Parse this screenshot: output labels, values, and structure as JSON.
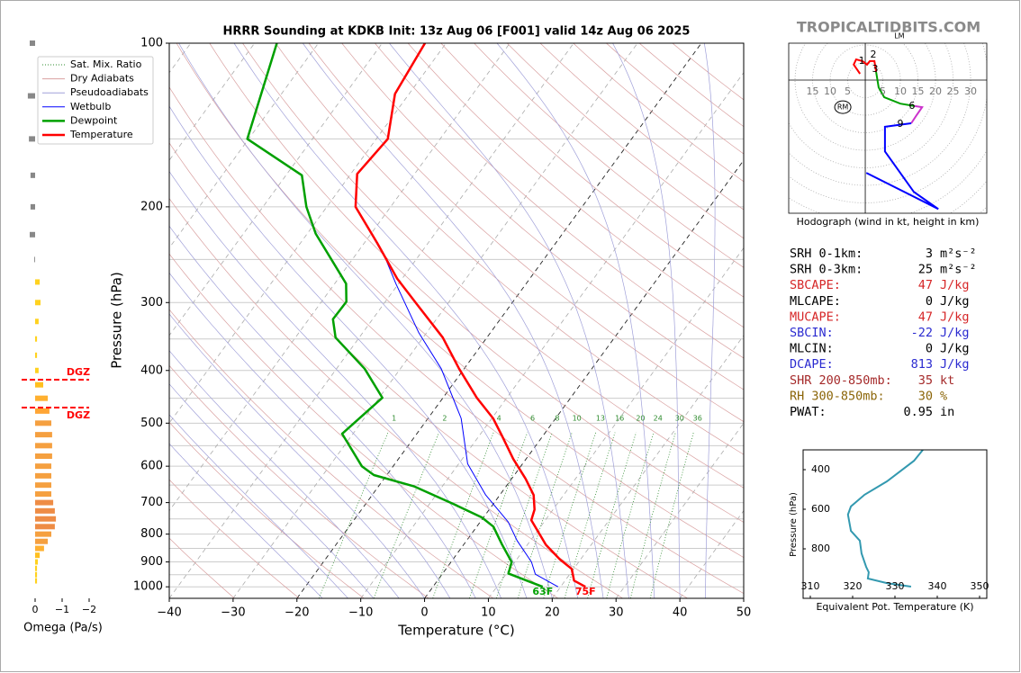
{
  "watermark": "TROPICALTIDBITS.COM",
  "chart_data": [
    {
      "type": "skewt",
      "title": "HRRR Sounding at KDKB Init: 13z Aug 06 [F001] valid 14z Aug 06 2025",
      "xlabel": "Temperature (°C)",
      "ylabel": "Pressure (hPa)",
      "xlim": [
        -40,
        50
      ],
      "ylim": [
        1050,
        100
      ],
      "log_y": true,
      "xticks": [
        {
          "value": -40,
          "label": "−40"
        },
        {
          "value": -30,
          "label": "−30"
        },
        {
          "value": -20,
          "label": "−20"
        },
        {
          "value": -10,
          "label": "−10"
        },
        0,
        10,
        20,
        30,
        40,
        50
      ],
      "yticks": [
        100,
        200,
        300,
        400,
        500,
        600,
        700,
        800,
        900,
        1000
      ],
      "yminor": [
        150,
        250,
        350,
        450,
        550,
        650,
        750,
        850,
        950
      ],
      "grid": true,
      "legend": "upper left",
      "dark_isotherms": [
        0,
        -20
      ],
      "guides": [
        {
          "name": "Sat. Mix. Ratio",
          "color": "#2e8b2e",
          "style": "dotted"
        },
        {
          "name": "Dry Adiabats",
          "color": "#d9a0a0",
          "style": "solid"
        },
        {
          "name": "Pseudoadiabats",
          "color": "#a0a0d9",
          "style": "solid"
        }
      ],
      "mixing_ratios": [
        1,
        2,
        4,
        6,
        8,
        10,
        13,
        16,
        20,
        24,
        30,
        36
      ],
      "series": [
        {
          "name": "Wetbulb",
          "color": "#0000ff",
          "linewidth": 1,
          "pressure": [
            1000,
            948,
            900,
            822,
            760,
            678,
            594,
            490,
            397,
            341,
            277,
            249,
            200
          ],
          "values": [
            19.6,
            14.6,
            12.6,
            7.9,
            4.4,
            -2.2,
            -8.6,
            -14.8,
            -23.6,
            -31.2,
            -40.4,
            -44.9,
            -55.5
          ]
        },
        {
          "name": "Dewpoint",
          "color": "#00a000",
          "linewidth": 2.5,
          "label": "63F",
          "pressure": [
            1000,
            945,
            900,
            836,
            775,
            745,
            705,
            653,
            623,
            600,
            523,
            449,
            397,
            348,
            322,
            299,
            277,
            224,
            200,
            175,
            150,
            100
          ],
          "values": [
            17.2,
            10.3,
            9.5,
            6.0,
            2.6,
            -0.3,
            -6.1,
            -14.5,
            -22.0,
            -24.9,
            -31.7,
            -29.5,
            -35.6,
            -43.7,
            -46.2,
            -46.1,
            -48.2,
            -58.7,
            -63.2,
            -67.5,
            -80.2,
            -86.5
          ]
        },
        {
          "name": "Temperature",
          "color": "#ff0000",
          "linewidth": 2.5,
          "label": "75F",
          "pressure": [
            1000,
            974,
            927,
            891,
            837,
            754,
            721,
            678,
            633,
            582,
            529,
            490,
            449,
            397,
            348,
            302,
            271,
            233,
            200,
            174,
            150,
            124,
            100
          ],
          "values": [
            23.9,
            21.4,
            19.7,
            16.8,
            12.9,
            7.8,
            7.1,
            5.3,
            2.2,
            -2.0,
            -6.3,
            -9.8,
            -14.7,
            -20.8,
            -26.9,
            -34.8,
            -40.8,
            -48.0,
            -55.5,
            -59.0,
            -58.2,
            -62.2,
            -63.3
          ]
        }
      ]
    },
    {
      "type": "bar",
      "orientation": "horizontal",
      "xlabel": "Omega (Pa/s)",
      "xlim": [
        0.5,
        -2.2
      ],
      "xticks": [
        0,
        {
          "value": -1,
          "label": "−1"
        },
        {
          "value": -2,
          "label": "−2"
        }
      ],
      "ylim": [
        1050,
        100
      ],
      "log_y": true,
      "y": [
        100,
        125,
        150,
        175,
        200,
        225,
        250,
        275,
        300,
        325,
        350,
        375,
        400,
        425,
        450,
        475,
        500,
        525,
        550,
        575,
        600,
        625,
        650,
        675,
        700,
        725,
        750,
        775,
        800,
        825,
        850,
        875,
        900,
        925,
        950,
        975
      ],
      "values": [
        0.2,
        0.27,
        0.23,
        0.17,
        0.17,
        0.2,
        0.03,
        -0.17,
        -0.2,
        -0.13,
        -0.07,
        -0.07,
        -0.13,
        -0.3,
        -0.47,
        -0.53,
        -0.6,
        -0.63,
        -0.63,
        -0.63,
        -0.6,
        -0.6,
        -0.6,
        -0.6,
        -0.67,
        -0.73,
        -0.77,
        -0.73,
        -0.6,
        -0.47,
        -0.33,
        -0.17,
        -0.1,
        -0.07,
        -0.07,
        -0.07
      ],
      "colors": [
        "#888888",
        "#888888",
        "#888888",
        "#888888",
        "#888888",
        "#888888",
        "#888888",
        "#ffd21f",
        "#ffd21f",
        "#ffd21f",
        "#ffd21f",
        "#ffd21f",
        "#ffd21f",
        "#ffc020",
        "#ffb030",
        "#ffa535",
        "#f5a040",
        "#f5a040",
        "#f5a040",
        "#f5a040",
        "#f5a040",
        "#f5a040",
        "#f5a040",
        "#f5a040",
        "#ee8c45",
        "#ee8c45",
        "#ee8c45",
        "#ee8c45",
        "#f5a040",
        "#f5a040",
        "#ffb030",
        "#ffc020",
        "#ffd21f",
        "#ffd21f",
        "#ffd21f",
        "#ffd21f"
      ],
      "dgz_color": "#ff0000",
      "dgz": [
        {
          "label": "DGZ",
          "value": 416
        },
        {
          "label": "DGZ",
          "value": 468
        }
      ]
    },
    {
      "type": "hodograph",
      "caption": "Hodograph (wind in kt, height in km)",
      "xlim": [
        -21.8,
        34.6
      ],
      "ylim": [
        -37.9,
        10.5
      ],
      "rings": [
        5,
        10,
        15,
        20,
        25,
        30
      ],
      "series": [
        {
          "color": "#ff0000",
          "u": [
            -1.5,
            -3.3,
            -2.6,
            -0.8,
            0.5,
            1.3,
            2.6,
            3.1
          ],
          "v": [
            1.8,
            4.4,
            5.9,
            5.4,
            4.4,
            5.4,
            5.4,
            2.3
          ]
        },
        {
          "color": "#00a000",
          "u": [
            3.1,
            3.8,
            5.4,
            10.0,
            14.1
          ],
          "v": [
            2.3,
            -2.1,
            -4.9,
            -6.7,
            -7.4
          ]
        },
        {
          "color": "#cc33cc",
          "u": [
            14.1,
            16.2,
            14.6,
            13.1
          ],
          "v": [
            -7.4,
            -7.7,
            -10.0,
            -12.3
          ]
        },
        {
          "color": "#0000ff",
          "u": [
            13.1,
            5.6,
            5.6,
            13.8,
            20.8,
            0.3
          ],
          "v": [
            -12.3,
            -13.3,
            -20.3,
            -31.8,
            -36.7,
            -26.4
          ]
        }
      ],
      "labels": [
        {
          "text": 1,
          "u": -1.0,
          "v": 5.4
        },
        {
          "text": 2,
          "u": 2.3,
          "v": 7.2
        },
        {
          "text": 3,
          "u": 2.8,
          "v": 3.1
        },
        {
          "text": 6,
          "u": 13.3,
          "v": -7.4
        },
        {
          "text": 9,
          "u": 10.0,
          "v": -12.6
        }
      ],
      "motions": [
        {
          "text": "RM",
          "u": -6.4,
          "v": -7.7,
          "circled": true
        },
        {
          "text": "LM",
          "u": 9.7,
          "v": 12.6,
          "circled": false
        }
      ]
    },
    {
      "type": "line",
      "xlabel": "Equivalent Pot. Temperature (K)",
      "ylabel": "Pressure (hPa)",
      "xlim": [
        308.3,
        351.7
      ],
      "ylim": [
        1050,
        300
      ],
      "xticks": [
        310,
        320,
        330,
        340,
        350
      ],
      "yticks": [
        400,
        600,
        800
      ],
      "series": [
        {
          "color": "#3399b0",
          "values": [
            336.6,
            334.5,
            328.1,
            322.8,
            319.6,
            318.9,
            319.6,
            321.7,
            322.1,
            323.2,
            323.8,
            323.6,
            328.1,
            333.8
          ],
          "y": [
            300,
            355,
            459,
            527,
            586,
            627,
            709,
            759,
            823,
            891,
            918,
            950,
            973,
            991
          ]
        }
      ]
    }
  ],
  "stats": {
    "rows": [
      {
        "label": "SRH 0-1km:",
        "value": 3,
        "unit": "m²s⁻²",
        "color": "#000000"
      },
      {
        "label": "SRH 0-3km:",
        "value": 25,
        "unit": "m²s⁻²",
        "color": "#000000"
      },
      {
        "label": "SBCAPE:",
        "value": 47,
        "unit": "J/kg",
        "color": "#d62728"
      },
      {
        "label": "MLCAPE:",
        "value": 0,
        "unit": "J/kg",
        "color": "#000000"
      },
      {
        "label": "MUCAPE:",
        "value": 47,
        "unit": "J/kg",
        "color": "#d62728"
      },
      {
        "label": "SBCIN:",
        "value": -22,
        "unit": "J/kg",
        "color": "#2b2bd0"
      },
      {
        "label": "MLCIN:",
        "value": 0,
        "unit": "J/kg",
        "color": "#000000"
      },
      {
        "label": "DCAPE:",
        "value": 813,
        "unit": "J/kg",
        "color": "#2b2bd0"
      },
      {
        "label": "SHR 200-850mb:",
        "value": 35,
        "unit": "kt",
        "color": "#a52a2a"
      },
      {
        "label": "RH 300-850mb:",
        "value": 30,
        "unit": "%",
        "color": "#8b6508"
      },
      {
        "label": "PWAT:",
        "value": 0.95,
        "unit": "in",
        "color": "#000000"
      }
    ]
  }
}
